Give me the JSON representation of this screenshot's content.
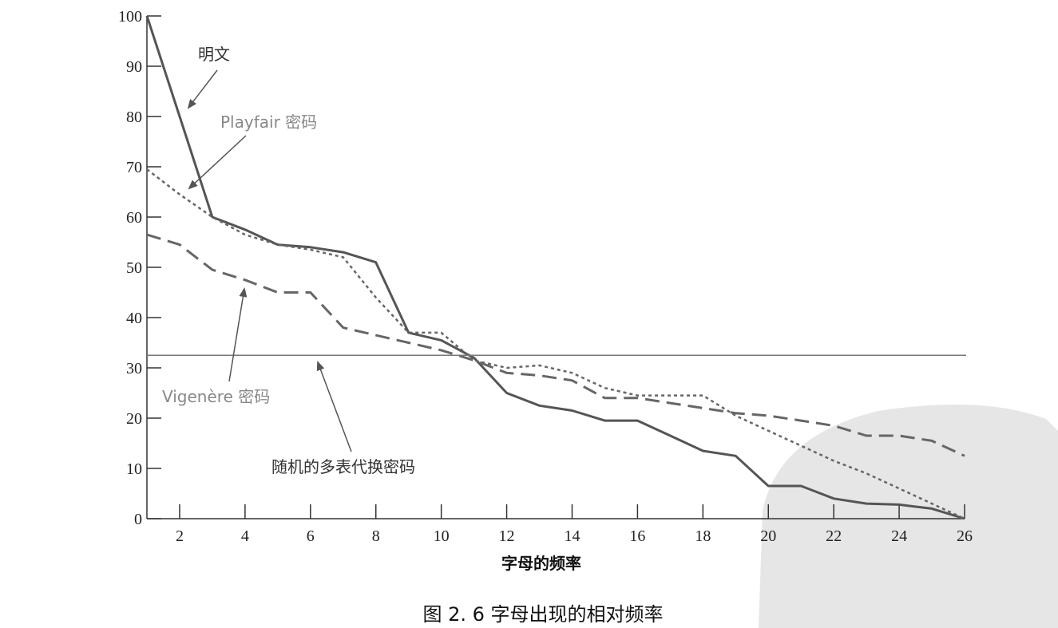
{
  "chart_data": {
    "type": "line",
    "xlabel": "字母的频率",
    "ylabel": "",
    "xlim": [
      1,
      26
    ],
    "ylim": [
      0,
      100
    ],
    "xticks": [
      2,
      4,
      6,
      8,
      10,
      12,
      14,
      16,
      18,
      20,
      22,
      24,
      26
    ],
    "yticks": [
      0,
      10,
      20,
      30,
      40,
      50,
      60,
      70,
      80,
      90,
      100
    ],
    "caption": "图 2. 6    字母出现的相对频率",
    "series": [
      {
        "name": "明文",
        "style": "solid",
        "color": "#555555",
        "x": [
          1,
          2,
          3,
          4,
          5,
          6,
          7,
          8,
          9,
          10,
          11,
          12,
          13,
          14,
          15,
          16,
          17,
          18,
          19,
          20,
          21,
          22,
          23,
          24,
          25,
          26
        ],
        "y": [
          100,
          80,
          60,
          57.5,
          54.5,
          54,
          53,
          51,
          37,
          35.5,
          32,
          25,
          22.5,
          21.5,
          19.5,
          19.5,
          16.5,
          13.5,
          12.5,
          6.5,
          6.5,
          4,
          3,
          2.8,
          2,
          0
        ]
      },
      {
        "name": "Playfair 密码",
        "style": "dotted",
        "color": "#666666",
        "x": [
          1,
          2,
          3,
          4,
          5,
          6,
          7,
          8,
          9,
          10,
          11,
          12,
          13,
          14,
          15,
          16,
          17,
          18,
          19,
          20,
          21,
          22,
          23,
          24,
          25,
          26
        ],
        "y": [
          69.5,
          64.5,
          60,
          56.5,
          54.5,
          53.5,
          52,
          44,
          37,
          37,
          31.5,
          30,
          30.5,
          29,
          26,
          24.5,
          24.5,
          24.5,
          20.5,
          17.5,
          14.5,
          11.5,
          9,
          6,
          3,
          0
        ]
      },
      {
        "name": "Vigenère 密码",
        "style": "dashed",
        "color": "#666666",
        "x": [
          1,
          2,
          3,
          4,
          5,
          6,
          7,
          8,
          9,
          10,
          11,
          12,
          13,
          14,
          15,
          16,
          17,
          18,
          19,
          20,
          21,
          22,
          23,
          24,
          25,
          26
        ],
        "y": [
          56.5,
          54.5,
          49.5,
          47.5,
          45,
          45,
          38,
          36.5,
          35,
          33.5,
          31.5,
          29,
          28.5,
          27.5,
          24,
          24,
          23,
          22,
          21,
          20.5,
          19.5,
          18.5,
          16.5,
          16.5,
          15.5,
          12.5
        ]
      },
      {
        "name": "随机的多表代换密码",
        "style": "thin",
        "color": "#777777",
        "x": [
          1,
          26
        ],
        "y": [
          32.5,
          32.5
        ]
      }
    ]
  }
}
